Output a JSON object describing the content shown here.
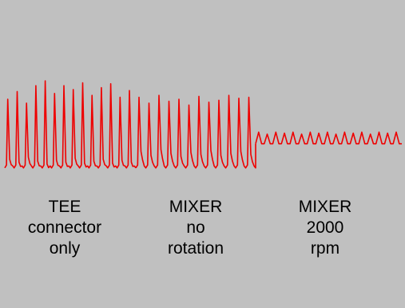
{
  "chart_data": {
    "type": "line",
    "title": "",
    "xlabel": "",
    "ylabel": "",
    "grid": false,
    "line_color": "#ee0000",
    "background": "#c0c0c0",
    "ylim": [
      0,
      1
    ],
    "segments": [
      {
        "label_lines": [
          "TEE",
          "connector",
          "only"
        ],
        "cycles": 14,
        "baseline": 0.05,
        "peaks": [
          0.76,
          0.84,
          0.72,
          0.9,
          0.95,
          0.82,
          0.9,
          0.86,
          0.93,
          0.8,
          0.88,
          0.92,
          0.78,
          0.85
        ],
        "troughs": [
          0.14,
          0.11,
          0.16,
          0.12,
          0.09,
          0.13,
          0.11,
          0.15,
          0.1,
          0.12,
          0.14,
          0.1,
          0.13,
          0.11
        ]
      },
      {
        "label_lines": [
          "MIXER",
          "no",
          "rotation"
        ],
        "cycles": 12,
        "baseline": 0.05,
        "peaks": [
          0.78,
          0.72,
          0.8,
          0.74,
          0.76,
          0.7,
          0.79,
          0.73,
          0.75,
          0.8,
          0.77,
          0.78
        ],
        "troughs": [
          0.22,
          0.18,
          0.24,
          0.2,
          0.17,
          0.21,
          0.19,
          0.23,
          0.18,
          0.2,
          0.22,
          0.19
        ]
      },
      {
        "label_lines": [
          "MIXER",
          "2000",
          "rpm"
        ],
        "cycles": 17,
        "baseline": 0.3,
        "peaks": [
          0.42,
          0.4,
          0.42,
          0.41,
          0.42,
          0.4,
          0.42,
          0.41,
          0.42,
          0.4,
          0.42,
          0.41,
          0.42,
          0.4,
          0.42,
          0.41,
          0.42
        ],
        "troughs": [
          0.3,
          0.3,
          0.3,
          0.3,
          0.3,
          0.3,
          0.3,
          0.3,
          0.3,
          0.3,
          0.3,
          0.3,
          0.3,
          0.3,
          0.3,
          0.3,
          0.3
        ]
      }
    ]
  }
}
